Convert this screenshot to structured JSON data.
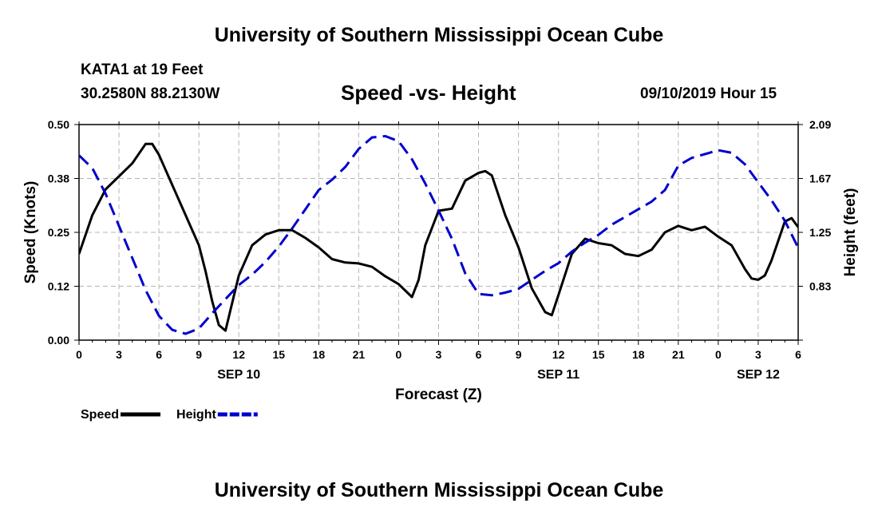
{
  "header": {
    "title": "University of Southern Mississippi Ocean Cube",
    "station": "KATA1 at 19 Feet",
    "coords": "30.2580N 88.2130W",
    "stamp": "09/10/2019 Hour 15"
  },
  "footer": {
    "title": "University of Southern Mississippi Ocean Cube"
  },
  "chart_data": {
    "type": "line",
    "title": "Speed -vs- Height",
    "xlabel": "Forecast (Z)",
    "ylabel": "Speed (Knots)",
    "y2label": "Height (feet)",
    "xlim": [
      0,
      54
    ],
    "ylim": [
      0,
      0.5
    ],
    "y2lim": [
      0.41,
      2.09
    ],
    "x_ticks": [
      0,
      3,
      6,
      9,
      12,
      15,
      18,
      21,
      24,
      27,
      30,
      33,
      36,
      39,
      42,
      45,
      48,
      51,
      54
    ],
    "x_tick_labels": [
      "0",
      "3",
      "6",
      "9",
      "12",
      "15",
      "18",
      "21",
      "0",
      "3",
      "6",
      "9",
      "12",
      "15",
      "18",
      "21",
      "0",
      "3",
      "6"
    ],
    "y_ticks": [
      0,
      0.125,
      0.25,
      0.375,
      0.5
    ],
    "y_tick_labels": [
      "0.00",
      "0.12",
      "0.25",
      "0.38",
      "0.50"
    ],
    "y2_ticks": [
      0.41,
      0.83,
      1.25,
      1.67,
      2.09
    ],
    "y2_tick_labels": [
      "",
      "0.83",
      "1.25",
      "1.67",
      "2.09"
    ],
    "date_labels": [
      {
        "x": 12,
        "label": "SEP 10"
      },
      {
        "x": 36,
        "label": "SEP 11"
      },
      {
        "x": 51,
        "label": "SEP 12"
      }
    ],
    "series": [
      {
        "name": "Speed",
        "axis": "left",
        "color": "#000000",
        "style": "solid",
        "x": [
          0,
          1,
          2,
          3,
          4,
          5,
          5.5,
          6,
          7,
          8,
          9,
          9.5,
          10,
          10.5,
          11,
          12,
          13,
          14,
          15,
          16,
          17,
          18,
          19,
          20,
          21,
          22,
          23,
          24,
          25,
          25.5,
          26,
          27,
          28,
          29,
          30,
          30.5,
          31,
          32,
          33,
          34,
          35,
          35.5,
          36,
          37,
          38,
          39,
          40,
          41,
          42,
          43,
          44,
          45,
          46,
          47,
          48,
          49,
          50,
          50.5,
          51,
          51.5,
          52,
          53,
          53.5,
          54
        ],
        "y": [
          0.2,
          0.29,
          0.35,
          0.38,
          0.41,
          0.455,
          0.455,
          0.43,
          0.36,
          0.29,
          0.22,
          0.16,
          0.09,
          0.035,
          0.022,
          0.15,
          0.22,
          0.245,
          0.255,
          0.255,
          0.237,
          0.215,
          0.188,
          0.18,
          0.178,
          0.17,
          0.148,
          0.13,
          0.1,
          0.14,
          0.22,
          0.3,
          0.305,
          0.37,
          0.388,
          0.392,
          0.382,
          0.29,
          0.215,
          0.12,
          0.065,
          0.058,
          0.105,
          0.2,
          0.235,
          0.225,
          0.22,
          0.2,
          0.195,
          0.21,
          0.25,
          0.265,
          0.255,
          0.263,
          0.24,
          0.22,
          0.165,
          0.143,
          0.14,
          0.15,
          0.185,
          0.275,
          0.283,
          0.262
        ]
      },
      {
        "name": "Height",
        "axis": "right",
        "color": "#0000cc",
        "style": "dashed",
        "x": [
          0,
          1,
          2,
          3,
          4,
          5,
          6,
          7,
          8,
          9,
          10,
          11,
          12,
          13,
          14,
          15,
          16,
          17,
          18,
          19,
          20,
          21,
          22,
          23,
          24,
          25,
          26,
          27,
          28,
          29,
          30,
          31,
          32,
          33,
          34,
          35,
          36,
          37,
          38,
          39,
          40,
          41,
          42,
          43,
          44,
          45,
          46,
          47,
          48,
          49,
          50,
          51,
          52,
          53,
          54
        ],
        "y": [
          1.85,
          1.75,
          1.55,
          1.3,
          1.05,
          0.8,
          0.6,
          0.49,
          0.46,
          0.5,
          0.62,
          0.73,
          0.84,
          0.92,
          1.02,
          1.14,
          1.28,
          1.43,
          1.58,
          1.66,
          1.76,
          1.9,
          1.99,
          2.0,
          1.96,
          1.82,
          1.63,
          1.42,
          1.2,
          0.93,
          0.77,
          0.76,
          0.78,
          0.81,
          0.88,
          0.95,
          1.01,
          1.1,
          1.17,
          1.23,
          1.31,
          1.37,
          1.43,
          1.49,
          1.58,
          1.77,
          1.83,
          1.86,
          1.89,
          1.87,
          1.78,
          1.64,
          1.5,
          1.34,
          1.13
        ]
      }
    ],
    "legend": [
      {
        "label": "Speed",
        "color": "#000000",
        "style": "solid"
      },
      {
        "label": "Height",
        "color": "#0000cc",
        "style": "dashed"
      }
    ]
  }
}
